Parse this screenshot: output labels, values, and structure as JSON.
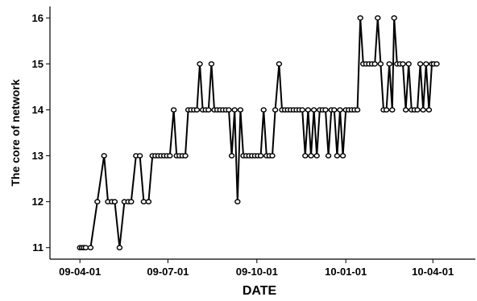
{
  "chart_data": {
    "type": "line",
    "xlabel": "DATE",
    "ylabel": "The core of network",
    "x_scale": "date",
    "xlim": [
      "2009-03-01",
      "2010-05-15"
    ],
    "ylim": [
      10.75,
      16.25
    ],
    "x_ticks": [
      {
        "date": "2009-04-01",
        "label": "09-04-01"
      },
      {
        "date": "2009-07-01",
        "label": "09-07-01"
      },
      {
        "date": "2009-10-01",
        "label": "09-10-01"
      },
      {
        "date": "2010-01-01",
        "label": "10-01-01"
      },
      {
        "date": "2010-04-01",
        "label": "10-04-01"
      }
    ],
    "y_ticks": [
      11,
      12,
      13,
      14,
      15,
      16
    ],
    "grid": false,
    "legend": "none",
    "series_color": "#000000",
    "marker": "open-circle",
    "series": [
      {
        "points": [
          [
            "2009-04-01",
            11
          ],
          [
            "2009-04-03",
            11
          ],
          [
            "2009-04-05",
            11
          ],
          [
            "2009-04-07",
            11
          ],
          [
            "2009-04-12",
            11
          ],
          [
            "2009-04-19",
            12
          ],
          [
            "2009-04-26",
            13
          ],
          [
            "2009-04-30",
            12
          ],
          [
            "2009-05-04",
            12
          ],
          [
            "2009-05-07",
            12
          ],
          [
            "2009-05-12",
            11
          ],
          [
            "2009-05-17",
            12
          ],
          [
            "2009-05-21",
            12
          ],
          [
            "2009-05-24",
            12
          ],
          [
            "2009-05-29",
            13
          ],
          [
            "2009-06-02",
            13
          ],
          [
            "2009-06-06",
            12
          ],
          [
            "2009-06-11",
            12
          ],
          [
            "2009-06-15",
            13
          ],
          [
            "2009-06-18",
            13
          ],
          [
            "2009-06-21",
            13
          ],
          [
            "2009-06-24",
            13
          ],
          [
            "2009-06-27",
            13
          ],
          [
            "2009-06-30",
            13
          ],
          [
            "2009-07-03",
            13
          ],
          [
            "2009-07-07",
            14
          ],
          [
            "2009-07-10",
            13
          ],
          [
            "2009-07-13",
            13
          ],
          [
            "2009-07-16",
            13
          ],
          [
            "2009-07-19",
            13
          ],
          [
            "2009-07-22",
            14
          ],
          [
            "2009-07-25",
            14
          ],
          [
            "2009-07-28",
            14
          ],
          [
            "2009-07-31",
            14
          ],
          [
            "2009-08-03",
            15
          ],
          [
            "2009-08-06",
            14
          ],
          [
            "2009-08-09",
            14
          ],
          [
            "2009-08-12",
            14
          ],
          [
            "2009-08-15",
            15
          ],
          [
            "2009-08-18",
            14
          ],
          [
            "2009-08-21",
            14
          ],
          [
            "2009-08-24",
            14
          ],
          [
            "2009-08-27",
            14
          ],
          [
            "2009-08-30",
            14
          ],
          [
            "2009-09-02",
            14
          ],
          [
            "2009-09-05",
            13
          ],
          [
            "2009-09-08",
            14
          ],
          [
            "2009-09-11",
            12
          ],
          [
            "2009-09-14",
            14
          ],
          [
            "2009-09-17",
            13
          ],
          [
            "2009-09-20",
            13
          ],
          [
            "2009-09-23",
            13
          ],
          [
            "2009-09-26",
            13
          ],
          [
            "2009-09-29",
            13
          ],
          [
            "2009-10-02",
            13
          ],
          [
            "2009-10-05",
            13
          ],
          [
            "2009-10-08",
            14
          ],
          [
            "2009-10-11",
            13
          ],
          [
            "2009-10-14",
            13
          ],
          [
            "2009-10-17",
            13
          ],
          [
            "2009-10-20",
            14
          ],
          [
            "2009-10-24",
            15
          ],
          [
            "2009-10-27",
            14
          ],
          [
            "2009-10-30",
            14
          ],
          [
            "2009-11-02",
            14
          ],
          [
            "2009-11-05",
            14
          ],
          [
            "2009-11-08",
            14
          ],
          [
            "2009-11-11",
            14
          ],
          [
            "2009-11-14",
            14
          ],
          [
            "2009-11-17",
            14
          ],
          [
            "2009-11-20",
            13
          ],
          [
            "2009-11-23",
            14
          ],
          [
            "2009-11-26",
            13
          ],
          [
            "2009-11-29",
            14
          ],
          [
            "2009-12-02",
            13
          ],
          [
            "2009-12-05",
            14
          ],
          [
            "2009-12-08",
            14
          ],
          [
            "2009-12-11",
            14
          ],
          [
            "2009-12-14",
            13
          ],
          [
            "2009-12-17",
            14
          ],
          [
            "2009-12-20",
            14
          ],
          [
            "2009-12-23",
            13
          ],
          [
            "2009-12-26",
            14
          ],
          [
            "2009-12-29",
            13
          ],
          [
            "2010-01-01",
            14
          ],
          [
            "2010-01-04",
            14
          ],
          [
            "2010-01-07",
            14
          ],
          [
            "2010-01-10",
            14
          ],
          [
            "2010-01-13",
            14
          ],
          [
            "2010-01-16",
            16
          ],
          [
            "2010-01-19",
            15
          ],
          [
            "2010-01-22",
            15
          ],
          [
            "2010-01-25",
            15
          ],
          [
            "2010-01-28",
            15
          ],
          [
            "2010-01-31",
            15
          ],
          [
            "2010-02-03",
            16
          ],
          [
            "2010-02-06",
            15
          ],
          [
            "2010-02-09",
            14
          ],
          [
            "2010-02-12",
            14
          ],
          [
            "2010-02-15",
            15
          ],
          [
            "2010-02-18",
            14
          ],
          [
            "2010-02-20",
            16
          ],
          [
            "2010-02-23",
            15
          ],
          [
            "2010-02-26",
            15
          ],
          [
            "2010-03-01",
            15
          ],
          [
            "2010-03-04",
            14
          ],
          [
            "2010-03-07",
            15
          ],
          [
            "2010-03-10",
            14
          ],
          [
            "2010-03-13",
            14
          ],
          [
            "2010-03-16",
            14
          ],
          [
            "2010-03-19",
            15
          ],
          [
            "2010-03-22",
            14
          ],
          [
            "2010-03-25",
            15
          ],
          [
            "2010-03-28",
            14
          ],
          [
            "2010-03-31",
            15
          ],
          [
            "2010-04-02",
            15
          ],
          [
            "2010-04-05",
            15
          ]
        ]
      }
    ]
  }
}
